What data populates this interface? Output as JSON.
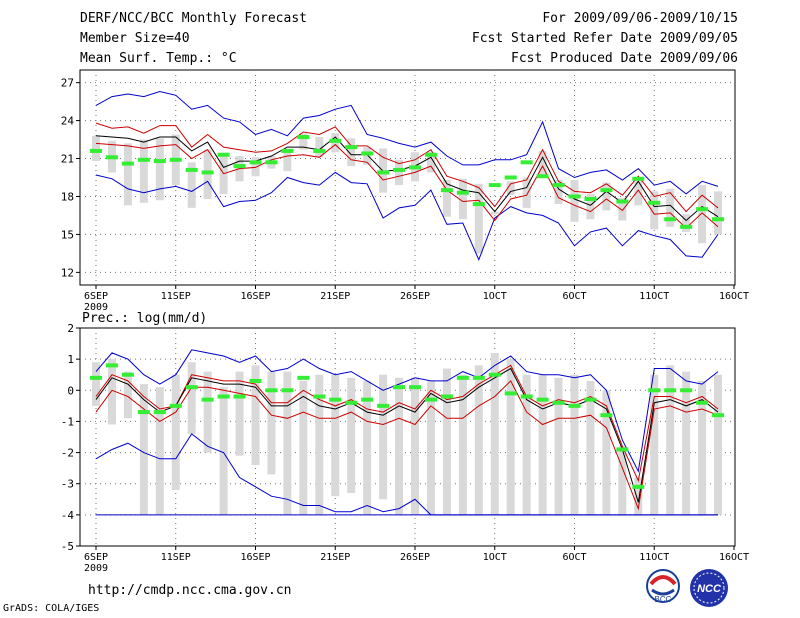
{
  "header": {
    "title": "DERF/NCC/BCC Monthly Forecast",
    "member_size": "Member Size=40",
    "variable": "Mean Surf. Temp.: °C",
    "period": "For 2009/09/06-2009/10/15",
    "started": "Fcst Started Refer Date 2009/09/05",
    "produced": "Fcst Produced Date 2009/09/06"
  },
  "footer": {
    "url": "http://cmdp.ncc.cma.gov.cn",
    "credit": "GrADS: COLA/IGES"
  },
  "logos": {
    "left": "BCC",
    "right": "NCC"
  },
  "colors": {
    "envelope": "#0000cc",
    "spread": "#cc0000",
    "mean": "#000000",
    "box": "#d9d9d9",
    "marker": "#33ee33"
  },
  "chart_data": [
    {
      "type": "line",
      "title": "Mean Surf. Temp.: °C",
      "x_tick_labels": [
        "6SEP",
        "11SEP",
        "16SEP",
        "21SEP",
        "26SEP",
        "1OCT",
        "6OCT",
        "11OCT",
        "16OCT"
      ],
      "x_year_label": "2009",
      "y_tick_labels": [
        "12",
        "15",
        "18",
        "21",
        "24",
        "27"
      ],
      "ylim": [
        11,
        28
      ],
      "x_days": 40,
      "series": [
        {
          "name": "max",
          "values": [
            25.2,
            25.9,
            26.1,
            25.9,
            26.3,
            26.0,
            24.9,
            25.2,
            24.2,
            23.9,
            22.9,
            23.3,
            22.8,
            24.2,
            24.4,
            24.9,
            25.2,
            22.9,
            22.6,
            22.2,
            21.9,
            22.3,
            21.2,
            20.5,
            20.5,
            20.9,
            20.9,
            21.3,
            23.9,
            20.2,
            19.5,
            19.9,
            20.1,
            19.3,
            20.2,
            18.9,
            19.2,
            18.2,
            19.2,
            18.8
          ]
        },
        {
          "name": "upper",
          "values": [
            23.8,
            23.4,
            23.5,
            23.0,
            23.6,
            23.6,
            21.9,
            22.9,
            21.9,
            21.7,
            21.5,
            21.6,
            22.2,
            23.1,
            22.9,
            23.5,
            22.0,
            22.0,
            21.1,
            20.6,
            20.9,
            21.7,
            19.6,
            19.2,
            18.7,
            17.2,
            19.0,
            19.3,
            21.7,
            19.2,
            18.4,
            18.3,
            19.0,
            18.1,
            19.6,
            18.0,
            18.3,
            16.8,
            18.1,
            17.1
          ]
        },
        {
          "name": "mean",
          "values": [
            22.8,
            22.7,
            22.6,
            22.3,
            22.7,
            22.7,
            21.6,
            22.3,
            20.3,
            20.8,
            20.8,
            21.2,
            21.9,
            21.9,
            21.7,
            22.7,
            21.3,
            21.3,
            20.0,
            20.1,
            20.4,
            21.1,
            19.0,
            18.5,
            18.3,
            16.8,
            18.4,
            18.7,
            21.1,
            18.6,
            17.8,
            17.3,
            18.4,
            17.5,
            19.2,
            17.2,
            17.3,
            16.1,
            17.2,
            16.4
          ]
        },
        {
          "name": "lower",
          "values": [
            22.2,
            22.1,
            22.0,
            21.8,
            22.0,
            22.1,
            21.0,
            21.7,
            19.8,
            20.2,
            20.3,
            20.9,
            21.2,
            21.3,
            21.1,
            22.1,
            20.9,
            20.7,
            19.3,
            19.6,
            19.9,
            20.4,
            18.5,
            17.6,
            17.7,
            16.1,
            17.8,
            18.1,
            20.4,
            17.9,
            17.3,
            16.8,
            17.8,
            16.9,
            18.5,
            16.6,
            16.7,
            15.5,
            16.7,
            15.6
          ]
        },
        {
          "name": "min",
          "values": [
            19.7,
            19.4,
            18.6,
            18.3,
            18.6,
            18.8,
            18.4,
            19.2,
            17.2,
            17.6,
            17.7,
            18.3,
            19.5,
            19.1,
            18.9,
            19.9,
            19.1,
            19.0,
            16.3,
            17.1,
            17.3,
            18.5,
            15.8,
            15.9,
            13.0,
            16.3,
            17.2,
            16.7,
            16.5,
            15.9,
            14.1,
            15.2,
            15.5,
            14.1,
            15.3,
            14.9,
            14.6,
            13.3,
            13.2,
            15.0
          ]
        },
        {
          "name": "box_top",
          "values": [
            22.8,
            22.4,
            22.2,
            22.5,
            22.6,
            22.9,
            20.7,
            21.7,
            21.2,
            21.2,
            21.1,
            21.2,
            21.5,
            23.0,
            22.7,
            23.0,
            22.6,
            21.9,
            21.8,
            20.9,
            21.5,
            21.5,
            19.3,
            19.4,
            19.0,
            16.8,
            19.2,
            19.5,
            21.6,
            19.3,
            19.3,
            18.2,
            19.1,
            17.9,
            19.5,
            18.4,
            18.6,
            16.6,
            18.9,
            18.4
          ]
        },
        {
          "name": "box_bottom",
          "values": [
            20.8,
            19.9,
            17.3,
            17.5,
            17.7,
            18.9,
            17.1,
            17.8,
            18.2,
            19.2,
            19.6,
            20.2,
            20.0,
            21.7,
            21.1,
            21.5,
            20.4,
            20.5,
            18.3,
            18.9,
            19.2,
            19.9,
            16.4,
            16.2,
            13.5,
            16.6,
            18.1,
            17.1,
            19.5,
            17.4,
            16.0,
            16.2,
            16.9,
            16.1,
            17.3,
            15.4,
            15.6,
            15.2,
            14.3,
            15.0
          ]
        },
        {
          "name": "observed",
          "values": [
            21.6,
            21.1,
            20.6,
            20.9,
            20.8,
            20.9,
            20.1,
            19.9,
            21.3,
            20.4,
            20.7,
            20.7,
            21.6,
            22.7,
            21.6,
            22.4,
            21.9,
            21.4,
            19.9,
            20.1,
            20.3,
            21.3,
            18.5,
            18.3,
            17.4,
            18.9,
            19.5,
            20.7,
            19.6,
            18.9,
            18.0,
            17.8,
            18.5,
            17.6,
            19.4,
            17.5,
            16.2,
            15.6,
            17.0,
            16.2
          ]
        }
      ]
    },
    {
      "type": "line",
      "title": "Prec.: log(mm/d)",
      "x_tick_labels": [
        "6SEP",
        "11SEP",
        "16SEP",
        "21SEP",
        "26SEP",
        "1OCT",
        "6OCT",
        "11OCT",
        "16OCT"
      ],
      "x_year_label": "2009",
      "y_tick_labels": [
        "-5",
        "-4",
        "-3",
        "-2",
        "-1",
        "0",
        "1",
        "2"
      ],
      "ylim": [
        -5,
        2
      ],
      "x_days": 40,
      "series": [
        {
          "name": "max",
          "values": [
            0.6,
            1.2,
            1.0,
            0.5,
            0.2,
            0.5,
            1.3,
            1.2,
            1.1,
            0.9,
            1.1,
            0.6,
            0.7,
            1.0,
            0.7,
            0.5,
            0.6,
            0.3,
            0.0,
            0.2,
            0.4,
            0.3,
            0.3,
            0.6,
            0.4,
            0.8,
            1.1,
            0.6,
            0.5,
            0.5,
            0.4,
            0.5,
            0.0,
            -1.6,
            -2.6,
            0.7,
            0.7,
            0.3,
            0.2,
            0.6
          ]
        },
        {
          "name": "upper",
          "values": [
            -0.2,
            0.5,
            0.3,
            -0.2,
            -0.6,
            -0.5,
            0.5,
            0.4,
            0.3,
            0.3,
            0.2,
            -0.4,
            -0.4,
            0.0,
            -0.3,
            -0.5,
            -0.3,
            -0.6,
            -0.7,
            -0.4,
            -0.6,
            0.0,
            -0.3,
            -0.2,
            0.2,
            0.5,
            0.8,
            -0.2,
            -0.5,
            -0.3,
            -0.4,
            -0.2,
            -0.5,
            -1.8,
            -2.9,
            -0.2,
            -0.2,
            -0.4,
            -0.2,
            -0.6
          ]
        },
        {
          "name": "mean",
          "values": [
            -0.3,
            0.4,
            0.2,
            -0.3,
            -0.7,
            -0.5,
            0.4,
            0.3,
            0.2,
            0.2,
            0.1,
            -0.5,
            -0.5,
            -0.2,
            -0.5,
            -0.6,
            -0.4,
            -0.7,
            -0.8,
            -0.5,
            -0.7,
            -0.1,
            -0.4,
            -0.3,
            0.1,
            0.4,
            0.7,
            -0.3,
            -0.6,
            -0.4,
            -0.5,
            -0.3,
            -0.6,
            -1.9,
            -3.6,
            -0.4,
            -0.3,
            -0.5,
            -0.3,
            -0.7
          ]
        },
        {
          "name": "lower",
          "values": [
            -0.7,
            0.0,
            -0.2,
            -0.6,
            -1.0,
            -0.7,
            0.1,
            0.1,
            0.0,
            -0.1,
            -0.2,
            -0.8,
            -0.9,
            -0.7,
            -0.9,
            -0.9,
            -0.7,
            -1.0,
            -1.1,
            -0.9,
            -1.1,
            -0.5,
            -0.9,
            -0.9,
            -0.5,
            -0.2,
            0.3,
            -0.7,
            -1.1,
            -0.9,
            -0.9,
            -0.8,
            -1.2,
            -2.5,
            -3.8,
            -0.6,
            -0.5,
            -0.7,
            -0.6,
            -0.8
          ]
        },
        {
          "name": "min",
          "values": [
            -2.2,
            -1.9,
            -1.7,
            -2.0,
            -2.2,
            -2.2,
            -1.4,
            -1.8,
            -2.0,
            -2.8,
            -3.1,
            -3.4,
            -3.5,
            -3.7,
            -3.7,
            -3.9,
            -3.9,
            -3.7,
            -3.9,
            -3.8,
            -3.5,
            -4.0,
            -4.0,
            -4.0,
            -4.0,
            -4.0,
            -4.0,
            -4.0,
            -4.0,
            -4.0,
            -4.0,
            -4.0,
            -4.0,
            -4.0,
            -4.0,
            -4.0,
            -4.0,
            -4.0,
            -4.0,
            -4.0
          ]
        },
        {
          "name": "floor",
          "values": [
            -4,
            -4,
            -4,
            -4,
            -4,
            -4,
            -4,
            -4,
            -4,
            -4,
            -4,
            -4,
            -4,
            -4,
            -4,
            -4,
            -4,
            -4,
            -4,
            -4,
            -4,
            -4,
            -4,
            -4,
            -4,
            -4,
            -4,
            -4,
            -4,
            -4,
            -4,
            -4,
            -4,
            -4,
            -4,
            -4,
            -4,
            -4,
            -4,
            -4
          ]
        },
        {
          "name": "box_top",
          "values": [
            0.9,
            1.0,
            0.6,
            0.2,
            0.1,
            0.5,
            0.9,
            0.6,
            0.1,
            0.6,
            0.8,
            0.6,
            0.6,
            0.3,
            0.5,
            0.5,
            0.4,
            0.3,
            0.5,
            0.4,
            0.4,
            0.3,
            0.7,
            0.5,
            0.8,
            1.2,
            1.0,
            0.5,
            0.5,
            0.4,
            0.5,
            0.3,
            0.0,
            -1.8,
            -2.8,
            0.5,
            0.8,
            0.6,
            0.3,
            0.5
          ]
        },
        {
          "name": "box_bottom",
          "values": [
            -0.5,
            -1.1,
            -0.9,
            -4.0,
            -4.0,
            -3.2,
            -1.4,
            -2.0,
            -4.0,
            -2.1,
            -2.4,
            -2.7,
            -4.0,
            -4.0,
            -4.0,
            -3.4,
            -3.3,
            -4.0,
            -3.5,
            -4.0,
            -4.0,
            -4.0,
            -4.0,
            -4.0,
            -4.0,
            -4.0,
            -4.0,
            -4.0,
            -4.0,
            -4.0,
            -4.0,
            -4.0,
            -4.0,
            -4.0,
            -4.0,
            -4.0,
            -4.0,
            -4.0,
            -4.0,
            -4.0
          ]
        },
        {
          "name": "observed",
          "values": [
            0.4,
            0.8,
            0.5,
            -0.7,
            -0.7,
            -0.5,
            0.1,
            -0.3,
            -0.2,
            -0.2,
            0.3,
            0.0,
            0.0,
            0.4,
            -0.2,
            -0.3,
            -0.4,
            -0.3,
            -0.5,
            0.1,
            0.1,
            -0.3,
            -0.2,
            0.4,
            0.4,
            0.5,
            -0.1,
            -0.2,
            -0.3,
            -0.4,
            -0.5,
            -0.3,
            -0.8,
            -1.9,
            -3.1,
            0.0,
            0.0,
            0.0,
            -0.4,
            -0.8
          ]
        }
      ]
    }
  ]
}
